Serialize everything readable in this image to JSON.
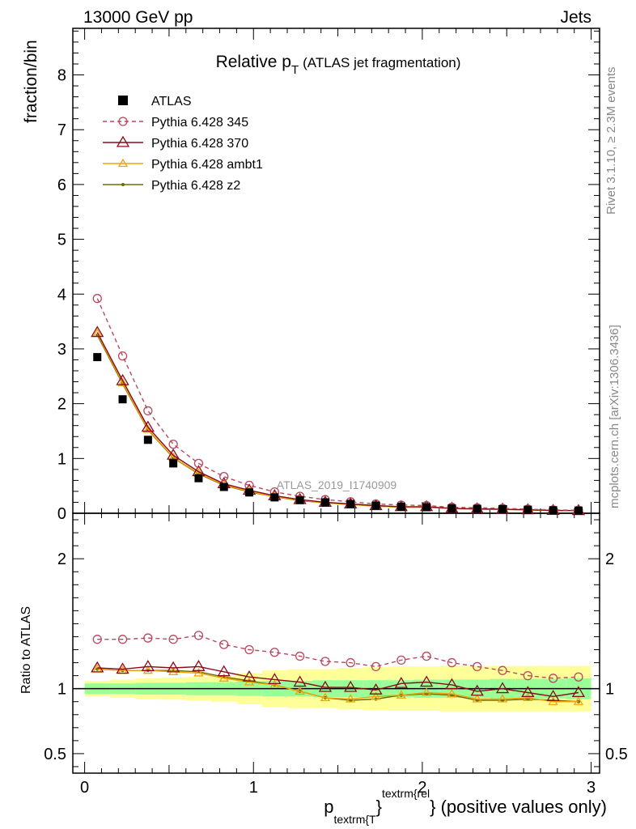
{
  "header": {
    "left": "13000 GeV pp",
    "right": "Jets"
  },
  "plot_title": {
    "main": "Relative p",
    "main_sub": "T",
    "paren": "(ATLAS jet fragmentation)"
  },
  "side_labels": {
    "rivet": "Rivet 3.1.10, ≥ 2.3M events",
    "mcplots": "mcplots.cern.ch [arXiv:1306.3436]"
  },
  "watermark": "ATLAS_2019_I1740909",
  "xaxis": {
    "label_p": "p",
    "label_sub": "textrm{T",
    "label_close": "}",
    "label_sup": "textrm{rel",
    "label_close2": "}",
    "label_rest": " (positive values only)"
  },
  "colors": {
    "atlas": "#000000",
    "p345": "#b8485e",
    "p370": "#8b0a1a",
    "ambt1": "#f0a30a",
    "z2": "#6b6b00",
    "band_inner": "#99ff99",
    "band_outer": "#ffff99"
  },
  "chart_data": [
    {
      "type": "scatter",
      "ylabel": "fraction/bin",
      "xlim": [
        -0.07,
        3.05
      ],
      "ylim": [
        0,
        8.85
      ],
      "yticks": [
        0,
        1,
        2,
        3,
        4,
        5,
        6,
        7,
        8
      ],
      "xticks": [
        0,
        1,
        2,
        3
      ],
      "legend_position": "top-left",
      "x": [
        0.075,
        0.225,
        0.375,
        0.525,
        0.675,
        0.825,
        0.975,
        1.125,
        1.275,
        1.425,
        1.575,
        1.725,
        1.875,
        2.025,
        2.175,
        2.325,
        2.475,
        2.625,
        2.775,
        2.925
      ],
      "series": [
        {
          "name": "ATLAS",
          "values": [
            2.85,
            2.08,
            1.34,
            0.91,
            0.64,
            0.48,
            0.38,
            0.29,
            0.24,
            0.2,
            0.17,
            0.14,
            0.12,
            0.11,
            0.09,
            0.08,
            0.075,
            0.065,
            0.055,
            0.05
          ]
        },
        {
          "name": "Pythia 6.428 345",
          "values": [
            3.92,
            2.87,
            1.87,
            1.26,
            0.91,
            0.67,
            0.51,
            0.39,
            0.31,
            0.25,
            0.21,
            0.17,
            0.15,
            0.14,
            0.11,
            0.1,
            0.09,
            0.075,
            0.06,
            0.055
          ]
        },
        {
          "name": "Pythia 6.428 370",
          "values": [
            3.3,
            2.42,
            1.57,
            1.06,
            0.76,
            0.54,
            0.42,
            0.32,
            0.25,
            0.2,
            0.17,
            0.14,
            0.12,
            0.12,
            0.09,
            0.08,
            0.075,
            0.064,
            0.052,
            0.049
          ]
        },
        {
          "name": "Pythia 6.428 ambt1",
          "values": [
            3.28,
            2.38,
            1.53,
            1.02,
            0.73,
            0.52,
            0.4,
            0.3,
            0.24,
            0.19,
            0.16,
            0.13,
            0.11,
            0.11,
            0.085,
            0.075,
            0.07,
            0.06,
            0.05,
            0.046
          ]
        },
        {
          "name": "Pythia 6.428 z2",
          "values": [
            3.25,
            2.36,
            1.52,
            1.01,
            0.72,
            0.51,
            0.39,
            0.3,
            0.23,
            0.19,
            0.16,
            0.13,
            0.11,
            0.11,
            0.085,
            0.075,
            0.07,
            0.06,
            0.05,
            0.046
          ]
        }
      ]
    },
    {
      "type": "line",
      "ylabel": "Ratio to ATLAS",
      "ylim": [
        0.35,
        2.35
      ],
      "yticks": [
        0.5,
        1,
        2
      ],
      "right_tick_labels": [
        "0.5",
        "1",
        "2"
      ],
      "x": [
        0.075,
        0.225,
        0.375,
        0.525,
        0.675,
        0.825,
        0.975,
        1.125,
        1.275,
        1.425,
        1.575,
        1.725,
        1.875,
        2.025,
        2.175,
        2.325,
        2.475,
        2.625,
        2.775,
        2.925
      ],
      "band_inner": [
        0.04,
        0.04,
        0.045,
        0.045,
        0.05,
        0.05,
        0.055,
        0.06,
        0.06,
        0.065,
        0.065,
        0.065,
        0.065,
        0.07,
        0.07,
        0.07,
        0.075,
        0.075,
        0.075,
        0.08
      ],
      "band_outer": [
        0.06,
        0.07,
        0.08,
        0.085,
        0.09,
        0.1,
        0.12,
        0.14,
        0.15,
        0.15,
        0.16,
        0.165,
        0.17,
        0.17,
        0.175,
        0.175,
        0.175,
        0.175,
        0.175,
        0.175
      ],
      "series": [
        {
          "name": "Pythia 6.428 345",
          "values": [
            1.38,
            1.38,
            1.39,
            1.38,
            1.41,
            1.34,
            1.3,
            1.28,
            1.25,
            1.21,
            1.2,
            1.17,
            1.22,
            1.25,
            1.2,
            1.17,
            1.14,
            1.1,
            1.08,
            1.09
          ]
        },
        {
          "name": "Pythia 6.428 370",
          "values": [
            1.16,
            1.15,
            1.17,
            1.16,
            1.17,
            1.13,
            1.09,
            1.07,
            1.05,
            1.01,
            1.01,
            0.99,
            1.04,
            1.05,
            1.03,
            0.98,
            1.0,
            0.97,
            0.94,
            0.97
          ]
        },
        {
          "name": "Pythia 6.428 ambt1",
          "values": [
            1.15,
            1.14,
            1.14,
            1.13,
            1.12,
            1.08,
            1.05,
            1.03,
            0.98,
            0.93,
            0.92,
            0.94,
            0.95,
            0.97,
            0.96,
            0.92,
            0.92,
            0.93,
            0.9,
            0.9
          ]
        },
        {
          "name": "Pythia 6.428 z2",
          "values": [
            1.15,
            1.14,
            1.14,
            1.14,
            1.13,
            1.09,
            1.06,
            1.03,
            0.98,
            0.93,
            0.91,
            0.92,
            0.95,
            0.96,
            0.95,
            0.91,
            0.91,
            0.92,
            0.91,
            0.9
          ]
        }
      ]
    }
  ]
}
